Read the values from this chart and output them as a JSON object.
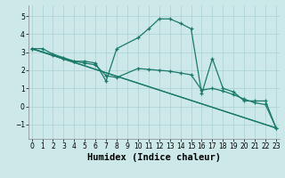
{
  "xlabel": "Humidex (Indice chaleur)",
  "bg_color": "#cce8e8",
  "grid_color": "#aad0d0",
  "line_color": "#1a7a6a",
  "line1_x": [
    0,
    1,
    2,
    3,
    4,
    5,
    6,
    7,
    8,
    10,
    11,
    12,
    13,
    14,
    15,
    16,
    17,
    18,
    19,
    20,
    21,
    22,
    23
  ],
  "line1_y": [
    3.2,
    3.2,
    2.9,
    2.7,
    2.5,
    2.5,
    2.4,
    1.4,
    3.2,
    3.8,
    4.3,
    4.85,
    4.85,
    4.6,
    4.3,
    0.7,
    2.65,
    1.0,
    0.8,
    0.3,
    0.3,
    0.3,
    -1.2
  ],
  "line2_x": [
    0,
    2,
    3,
    4,
    5,
    6,
    7,
    8,
    10,
    11,
    12,
    13,
    14,
    15,
    16,
    17,
    18,
    19,
    20,
    21,
    22,
    23
  ],
  "line2_y": [
    3.2,
    2.85,
    2.65,
    2.5,
    2.4,
    2.3,
    1.7,
    1.6,
    2.1,
    2.05,
    2.0,
    1.95,
    1.85,
    1.75,
    0.9,
    1.0,
    0.85,
    0.65,
    0.4,
    0.2,
    0.1,
    -1.2
  ],
  "line3_x": [
    0,
    23
  ],
  "line3_y": [
    3.2,
    -1.2
  ],
  "line4_x": [
    0,
    23
  ],
  "line4_y": [
    3.2,
    -1.2
  ],
  "ylim": [
    -1.8,
    5.6
  ],
  "xlim": [
    -0.3,
    23.3
  ],
  "yticks": [
    -1,
    0,
    1,
    2,
    3,
    4,
    5
  ],
  "xticks": [
    0,
    1,
    2,
    3,
    4,
    5,
    6,
    7,
    8,
    9,
    10,
    11,
    12,
    13,
    14,
    15,
    16,
    17,
    18,
    19,
    20,
    21,
    22,
    23
  ],
  "tick_fontsize": 5.5,
  "label_fontsize": 7.5
}
